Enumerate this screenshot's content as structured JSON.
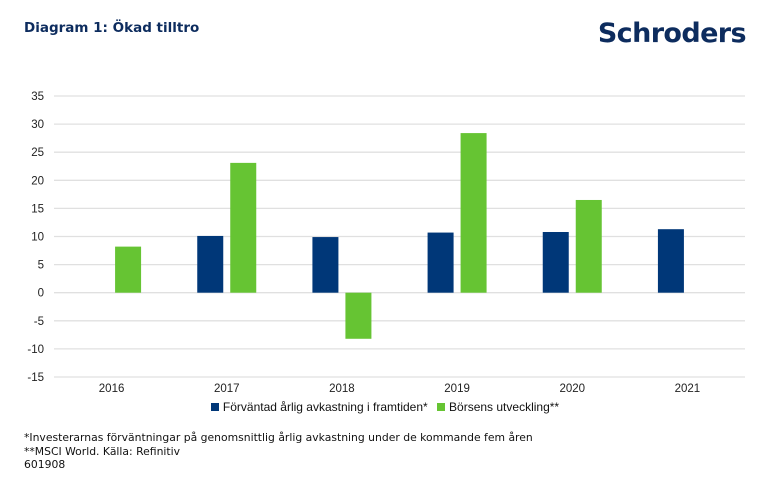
{
  "header": {
    "title": "Diagram 1: Ökad tilltro",
    "logo": "Schroders"
  },
  "chart_data": {
    "type": "bar",
    "title": "Diagram 1: Ökad tilltro",
    "xlabel": "",
    "ylabel": "",
    "categories": [
      "2016",
      "2017",
      "2018",
      "2019",
      "2020",
      "2021"
    ],
    "ylim": [
      -15,
      35
    ],
    "yticks": [
      35,
      30,
      25,
      20,
      15,
      10,
      5,
      0,
      -5,
      -10,
      -15
    ],
    "grid": true,
    "legend_position": "bottom",
    "series": [
      {
        "name": "Förväntad årlig avkastning i framtiden*",
        "color": "#003778",
        "values": [
          null,
          10.1,
          9.9,
          10.7,
          10.8,
          11.3
        ]
      },
      {
        "name": "Börsens utveckling**",
        "color": "#66c433",
        "values": [
          8.2,
          23.1,
          -8.2,
          28.4,
          16.5,
          null
        ]
      }
    ]
  },
  "footnotes": [
    "*Investerarnas förväntningar på genomsnittlig årlig avkastning under de kommande fem åren",
    "**MSCI World. Källa: Refinitiv",
    "601908"
  ]
}
